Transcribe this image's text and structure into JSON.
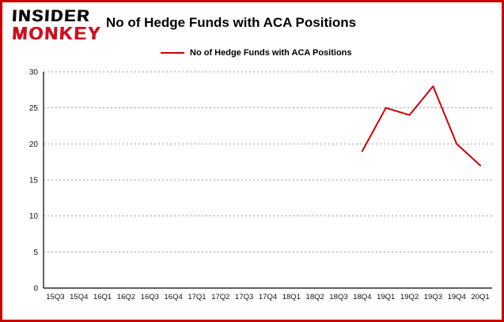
{
  "logo": {
    "line1": "INSIDER",
    "line2": "MONKEY"
  },
  "header": {
    "title": "No of Hedge Funds with ACA Positions"
  },
  "legend": {
    "label": "No of Hedge Funds with ACA Positions"
  },
  "colors": {
    "frame_border": "#cc0000",
    "line": "#cc0000",
    "grid": "#999999",
    "axis": "#000000",
    "text": "#000000"
  },
  "chart_data": {
    "type": "line",
    "title": "No of Hedge Funds with ACA Positions",
    "categories": [
      "15Q3",
      "15Q4",
      "16Q1",
      "16Q2",
      "16Q3",
      "16Q4",
      "17Q1",
      "17Q2",
      "17Q3",
      "17Q4",
      "18Q1",
      "18Q2",
      "18Q3",
      "18Q4",
      "19Q1",
      "19Q2",
      "19Q3",
      "19Q4",
      "20Q1"
    ],
    "values": [
      null,
      null,
      null,
      null,
      null,
      null,
      null,
      null,
      null,
      null,
      null,
      null,
      null,
      19,
      25,
      24,
      28,
      20,
      17
    ],
    "xlabel": "",
    "ylabel": "",
    "ylim": [
      0,
      30
    ],
    "yticks": [
      0,
      5,
      10,
      15,
      20,
      25,
      30
    ],
    "grid": "horizontal-dotted",
    "legend_position": "top-left",
    "line_color": "#cc0000"
  }
}
